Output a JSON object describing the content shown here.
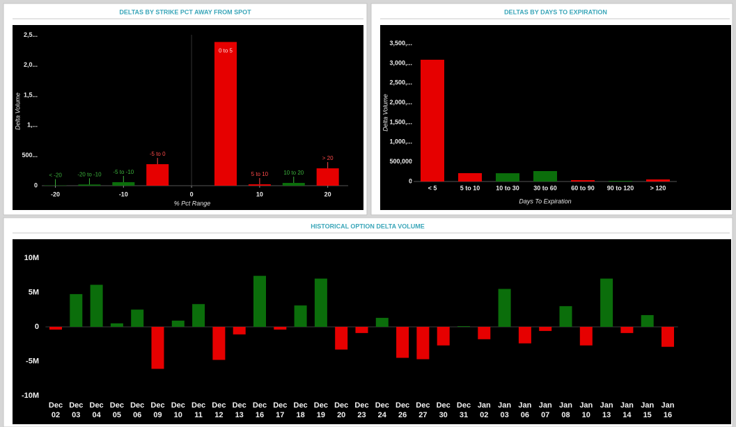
{
  "chart_data": [
    {
      "type": "bar",
      "title": "DELTAS BY STRIKE PCT AWAY FROM SPOT",
      "x_label": "% Pct Range",
      "y_label": "Delta Volume",
      "categories": [
        "< -20",
        "-20 to -10",
        "-5 to -10",
        "-5 to 0",
        "0 to 5",
        "5 to 10",
        "10 to 20",
        "> 20"
      ],
      "x": [
        -20,
        -15,
        -10,
        -5,
        5,
        10,
        15,
        20
      ],
      "values": [
        5000,
        20000,
        58000,
        357000,
        2385000,
        23000,
        46000,
        288000
      ],
      "colors": [
        "#0b6e0b",
        "#0b6e0b",
        "#0b6e0b",
        "#e60000",
        "#e60000",
        "#e60000",
        "#0b6e0b",
        "#e60000"
      ],
      "label_colors": [
        "#3cb33c",
        "#3cb33c",
        "#3cb33c",
        "#ff4a4a",
        "#ffe0e0",
        "#ff4a4a",
        "#3cb33c",
        "#ff4a4a"
      ],
      "xlim": [
        -22,
        23
      ],
      "xticks": [
        -20,
        -10,
        0,
        10,
        20
      ],
      "ylim": [
        0,
        2620000
      ],
      "yticks": [
        0,
        {
          "value": 500000,
          "label": "500..."
        },
        {
          "value": 1000000,
          "label": "1,..."
        },
        {
          "value": 1500000,
          "label": "1,5..."
        },
        {
          "value": 2000000,
          "label": "2,0..."
        },
        {
          "value": 2500000,
          "label": "2,5..."
        }
      ]
    },
    {
      "type": "bar",
      "title": "DELTAS BY DAYS TO EXPIRATION",
      "x_label": "Days To Expiration",
      "y_label": "Delta Volume",
      "categories": [
        "< 5",
        "5 to 10",
        "10 to 30",
        "30 to 60",
        "60 to 90",
        "90 to 120",
        "> 120"
      ],
      "values": [
        3090000,
        212000,
        210000,
        265000,
        35000,
        18000,
        53000
      ],
      "colors": [
        "#e60000",
        "#e60000",
        "#0b6e0b",
        "#0b6e0b",
        "#e60000",
        "#0b6e0b",
        "#e60000"
      ],
      "ylim": [
        0,
        3900000
      ],
      "yticks": [
        0,
        {
          "value": 500000,
          "label": "500,000"
        },
        {
          "value": 1000000,
          "label": "1,000,..."
        },
        {
          "value": 1500000,
          "label": "1,500,..."
        },
        {
          "value": 2000000,
          "label": "2,000,..."
        },
        {
          "value": 2500000,
          "label": "2,500,..."
        },
        {
          "value": 3000000,
          "label": "3,000,..."
        },
        {
          "value": 3500000,
          "label": "3,500,..."
        }
      ]
    },
    {
      "type": "bar",
      "title": "HISTORICAL OPTION DELTA VOLUME",
      "categories": [
        [
          "Dec",
          "02"
        ],
        [
          "Dec",
          "03"
        ],
        [
          "Dec",
          "04"
        ],
        [
          "Dec",
          "05"
        ],
        [
          "Dec",
          "06"
        ],
        [
          "Dec",
          "09"
        ],
        [
          "Dec",
          "10"
        ],
        [
          "Dec",
          "11"
        ],
        [
          "Dec",
          "12"
        ],
        [
          "Dec",
          "13"
        ],
        [
          "Dec",
          "16"
        ],
        [
          "Dec",
          "17"
        ],
        [
          "Dec",
          "18"
        ],
        [
          "Dec",
          "19"
        ],
        [
          "Dec",
          "20"
        ],
        [
          "Dec",
          "23"
        ],
        [
          "Dec",
          "24"
        ],
        [
          "Dec",
          "26"
        ],
        [
          "Dec",
          "27"
        ],
        [
          "Dec",
          "30"
        ],
        [
          "Dec",
          "31"
        ],
        [
          "Jan",
          "02"
        ],
        [
          "Jan",
          "03"
        ],
        [
          "Jan",
          "06"
        ],
        [
          "Jan",
          "07"
        ],
        [
          "Jan",
          "08"
        ],
        [
          "Jan",
          "10"
        ],
        [
          "Jan",
          "13"
        ],
        [
          "Jan",
          "14"
        ],
        [
          "Jan",
          "15"
        ],
        [
          "Jan",
          "16"
        ]
      ],
      "values": [
        -0.4,
        4.75,
        6.1,
        0.5,
        2.5,
        -6.1,
        0.9,
        3.3,
        -4.8,
        -1.1,
        7.4,
        -0.4,
        3.1,
        7.0,
        -3.3,
        -0.9,
        1.3,
        -4.5,
        -4.7,
        -2.7,
        0.1,
        -1.8,
        5.5,
        -2.4,
        -0.6,
        3.0,
        -2.7,
        7.0,
        -0.9,
        1.7,
        -2.9
      ],
      "positive_color": "#0b6e0b",
      "negative_color": "#e60000",
      "ylim": [
        -10.5,
        11.5
      ],
      "yticks": [
        {
          "value": 10,
          "label": "10M"
        },
        {
          "value": 5,
          "label": "5M"
        },
        0,
        {
          "value": -5,
          "label": "-5M"
        },
        {
          "value": -10,
          "label": "-10M"
        }
      ]
    }
  ]
}
